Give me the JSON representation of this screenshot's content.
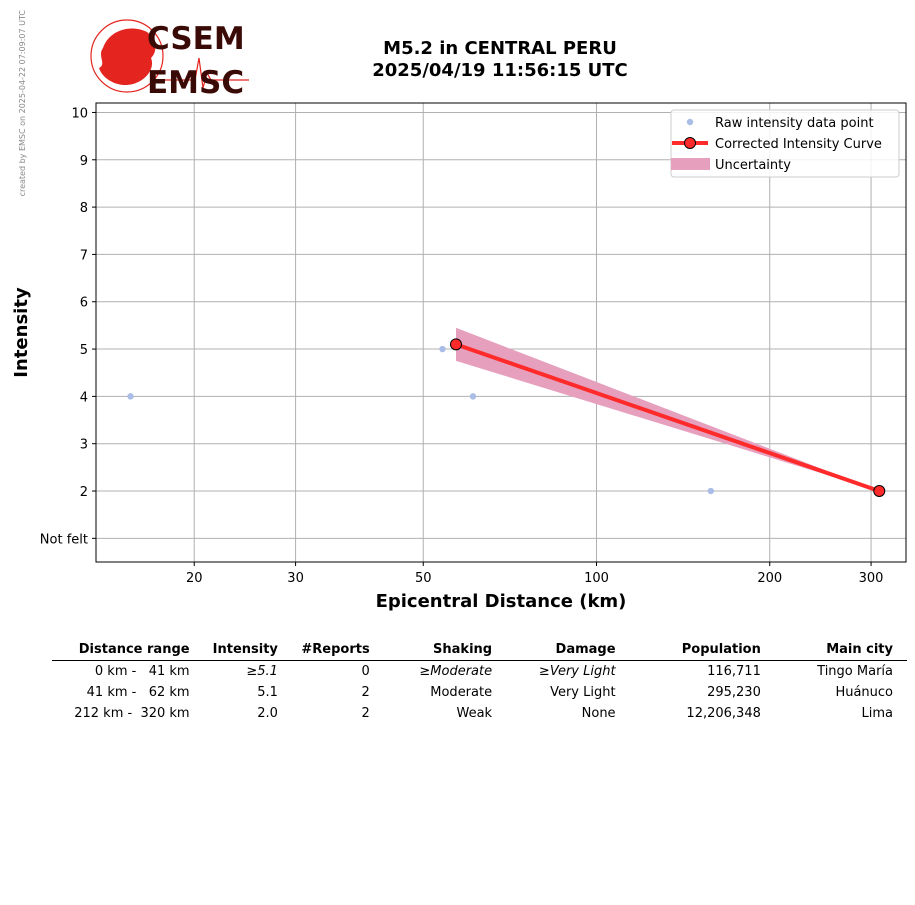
{
  "side_note": "created by EMSC on 2025-04-22 07:09:07 UTC",
  "logo": {
    "top": "CSEM",
    "bottom": "EMSC"
  },
  "title": {
    "line1": "M5.2 in CENTRAL PERU",
    "line2": "2025/04/19 11:56:15 UTC"
  },
  "colors": {
    "raw": "#aabde6",
    "curve": "#ff2a2a",
    "uncertainty": "#e6a0be",
    "logo_red": "#e4251f",
    "logo_dark": "#3a0a06"
  },
  "chart_data": {
    "type": "scatter",
    "xlabel": "Epicentral Distance (km)",
    "ylabel": "Intensity",
    "x_scale": "log",
    "xlim": [
      13.5,
      345
    ],
    "ylim": [
      0.5,
      10.2
    ],
    "x_ticks": [
      20,
      30,
      50,
      100,
      200,
      300
    ],
    "y_ticks": [
      {
        "value": 1,
        "label": "Not felt"
      },
      {
        "value": 2,
        "label": "2"
      },
      {
        "value": 3,
        "label": "3"
      },
      {
        "value": 4,
        "label": "4"
      },
      {
        "value": 5,
        "label": "5"
      },
      {
        "value": 6,
        "label": "6"
      },
      {
        "value": 7,
        "label": "7"
      },
      {
        "value": 8,
        "label": "8"
      },
      {
        "value": 9,
        "label": "9"
      },
      {
        "value": 10,
        "label": "10"
      }
    ],
    "grid": true,
    "legend_position": "top-right",
    "series": [
      {
        "name": "Raw intensity data point",
        "kind": "scatter",
        "x": [
          15.5,
          54,
          61,
          158
        ],
        "y": [
          4,
          5,
          4,
          2
        ]
      },
      {
        "name": "Corrected Intensity Curve",
        "kind": "line-markers",
        "x": [
          57,
          310
        ],
        "y": [
          5.1,
          2.0
        ]
      },
      {
        "name": "Uncertainty",
        "kind": "band",
        "x": [
          57,
          310
        ],
        "upper": [
          5.45,
          2.0
        ],
        "lower": [
          4.75,
          2.0
        ]
      }
    ]
  },
  "table": {
    "headers": [
      "Distance range",
      "Intensity",
      "#Reports",
      "Shaking",
      "Damage",
      "Population",
      "Main city"
    ],
    "rows": [
      {
        "distance": "0 km -   41 km",
        "intensity": "≥5.1",
        "reports": "0",
        "shaking": "≥Moderate",
        "damage": "≥Very Light",
        "population": "116,711",
        "city": "Tingo María"
      },
      {
        "distance": "41 km -   62 km",
        "intensity": "5.1",
        "reports": "2",
        "shaking": "Moderate",
        "damage": "Very Light",
        "population": "295,230",
        "city": "Huánuco"
      },
      {
        "distance": "212 km -  320 km",
        "intensity": "2.0",
        "reports": "2",
        "shaking": "Weak",
        "damage": "None",
        "population": "12,206,348",
        "city": "Lima"
      }
    ]
  }
}
